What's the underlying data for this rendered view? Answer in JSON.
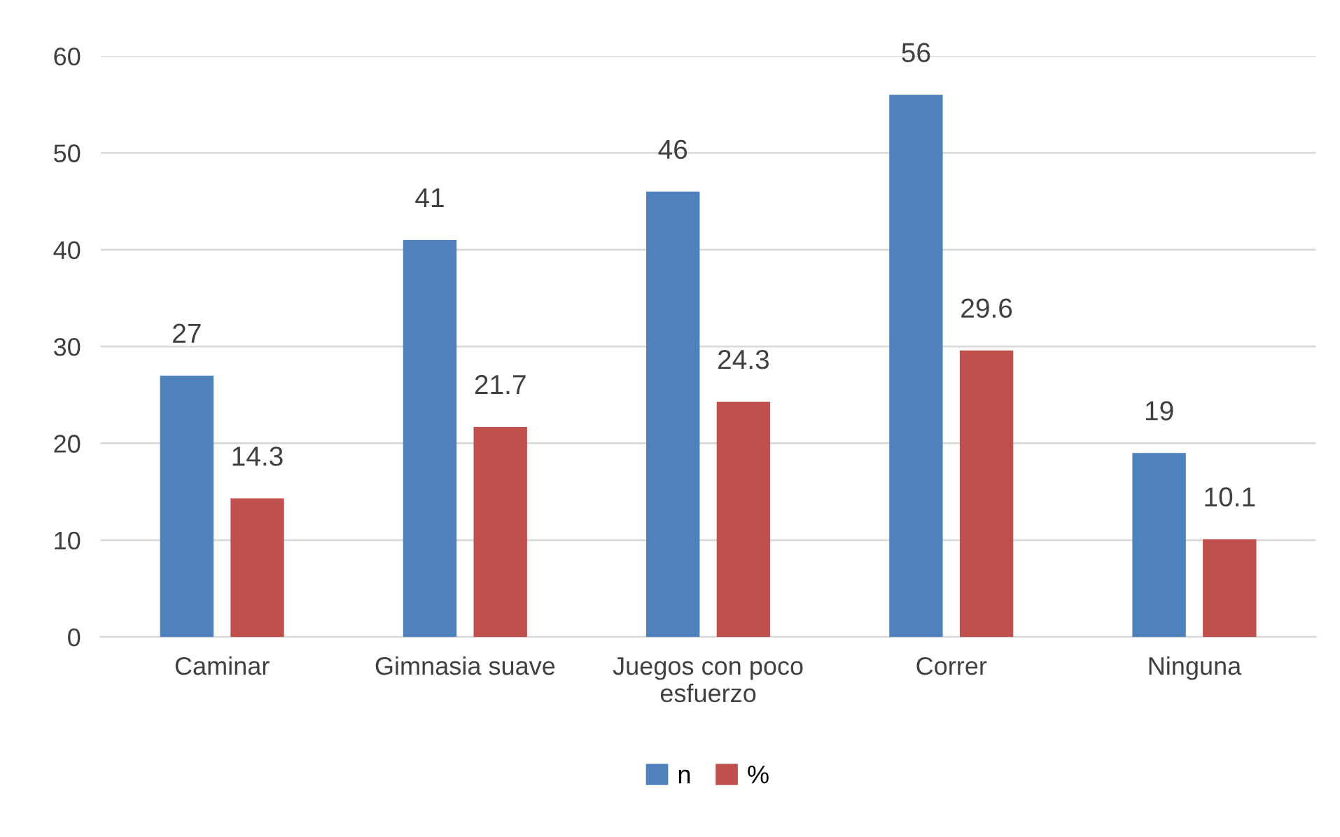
{
  "chart_data": {
    "type": "bar",
    "categories": [
      "Caminar",
      "Gimnasia suave",
      "Juegos con poco esfuerzo",
      "Correr",
      "Ninguna"
    ],
    "series": [
      {
        "name": "n",
        "color": "#4f81bd",
        "values": [
          27,
          41,
          46,
          56,
          19
        ]
      },
      {
        "name": "%",
        "color": "#c0504d",
        "values": [
          14.3,
          21.7,
          24.3,
          29.6,
          10.1
        ]
      }
    ],
    "ylim": [
      0,
      60
    ],
    "yticks": [
      0,
      10,
      20,
      30,
      40,
      50,
      60
    ],
    "grid": "y",
    "legend": "bottom",
    "data_labels": true
  }
}
